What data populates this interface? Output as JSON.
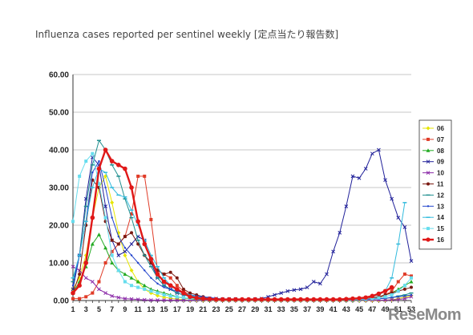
{
  "title": "Influenza cases reported per sentinel weekly [定点当たり報告数]",
  "watermark": "ReseMom",
  "chart_data": {
    "type": "line",
    "title": "Influenza cases reported per sentinel weekly [定点当たり報告数]",
    "ylim": [
      0,
      60
    ],
    "yticks": [
      0,
      10,
      20,
      30,
      40,
      50,
      60
    ],
    "ytick_labels": [
      "0.00",
      "10.00",
      "20.00",
      "30.00",
      "40.00",
      "50.00",
      "60.00"
    ],
    "xlim": [
      1,
      53
    ],
    "xtick_labels": [
      "1",
      "3",
      "5",
      "7",
      "9",
      "11",
      "13",
      "15",
      "17",
      "19",
      "21",
      "23",
      "25",
      "27",
      "29",
      "31",
      "33",
      "35",
      "37",
      "39",
      "41",
      "43",
      "45",
      "47",
      "49",
      "51",
      "53"
    ],
    "grid": "horizontal",
    "legend": "right",
    "series": [
      {
        "name": "06",
        "color": "#e6e600",
        "marker": "diamond",
        "values": [
          3,
          6,
          12,
          22,
          30,
          33,
          26,
          18,
          12,
          8,
          5,
          3,
          2,
          1.3,
          0.9,
          0.6,
          0.4,
          0.2,
          0.1,
          0.1,
          0.05,
          0.05,
          0.05,
          0.05,
          0.05,
          0.05,
          0.05,
          0.05,
          0.05,
          0.05,
          0.05,
          0.05,
          0.05,
          0.05,
          0.05,
          0.05,
          0.05,
          0.05,
          0.05,
          0.05,
          0.05,
          0.05,
          0.05,
          0.05,
          0.05,
          0.05,
          0.05,
          0.05,
          0.1,
          0.2,
          0.5,
          0.9,
          1.3
        ]
      },
      {
        "name": "07",
        "color": "#e03c28",
        "marker": "square",
        "values": [
          0.5,
          0.5,
          1,
          2,
          5,
          10,
          13,
          15,
          17,
          23,
          33,
          33,
          21.5,
          8,
          7,
          6,
          4,
          2.5,
          1.5,
          1,
          0.6,
          0.4,
          0.3,
          0.2,
          0.2,
          0.2,
          0.2,
          0.2,
          0.2,
          0.2,
          0.2,
          0.2,
          0.2,
          0.2,
          0.2,
          0.2,
          0.2,
          0.2,
          0.2,
          0.2,
          0.2,
          0.2,
          0.2,
          0.2,
          0.3,
          0.4,
          0.5,
          0.7,
          1.5,
          2.5,
          5,
          7,
          6.5
        ]
      },
      {
        "name": "08",
        "color": "#22aa22",
        "marker": "triangle",
        "values": [
          2,
          5,
          9,
          15,
          17.5,
          14,
          10,
          8,
          7,
          6,
          5,
          4,
          3,
          2.5,
          2,
          1.5,
          1,
          0.7,
          0.5,
          0.3,
          0.2,
          0.1,
          0.1,
          0.1,
          0.1,
          0.1,
          0.1,
          0.1,
          0.1,
          0.1,
          0.1,
          0.1,
          0.1,
          0.1,
          0.1,
          0.1,
          0.1,
          0.1,
          0.1,
          0.1,
          0.1,
          0.1,
          0.1,
          0.1,
          0.2,
          0.3,
          0.5,
          1,
          1.5,
          2,
          3,
          4,
          5
        ]
      },
      {
        "name": "09",
        "color": "#22229a",
        "marker": "x",
        "values": [
          3,
          12,
          27,
          38,
          36,
          25,
          16,
          12,
          13,
          15,
          17,
          16,
          10,
          6,
          4,
          3,
          2,
          1.5,
          1.2,
          1,
          0.8,
          0.6,
          0.5,
          0.4,
          0.4,
          0.4,
          0.3,
          0.3,
          0.4,
          0.5,
          1,
          1.5,
          2,
          2.5,
          2.8,
          3,
          3.5,
          5,
          4.5,
          7,
          13,
          18,
          25,
          33,
          32.5,
          35,
          39,
          40,
          32,
          27,
          22,
          19.5,
          10.5
        ]
      },
      {
        "name": "10",
        "color": "#8b2aa8",
        "marker": "x",
        "values": [
          9,
          8,
          6,
          5,
          3,
          2,
          1.2,
          0.8,
          0.5,
          0.4,
          0.3,
          0.2,
          0.1,
          0.1,
          0.1,
          0.1,
          0.1,
          0.1,
          0.1,
          0.1,
          0.1,
          0.1,
          0.1,
          0.1,
          0.1,
          0.1,
          0.1,
          0.1,
          0.1,
          0.1,
          0.1,
          0.1,
          0.1,
          0.1,
          0.1,
          0.1,
          0.1,
          0.1,
          0.1,
          0.1,
          0.1,
          0.1,
          0.1,
          0.1,
          0.1,
          0.1,
          0.1,
          0.1,
          0.1,
          0.2,
          0.3,
          0.5,
          1
        ]
      },
      {
        "name": "11",
        "color": "#7a1a12",
        "marker": "circle",
        "values": [
          2,
          7,
          20,
          32,
          30,
          21,
          16,
          15,
          17,
          18,
          15,
          12,
          10,
          8,
          7,
          7.5,
          6,
          3,
          2,
          1.5,
          1,
          0.6,
          0.4,
          0.3,
          0.2,
          0.2,
          0.2,
          0.2,
          0.2,
          0.2,
          0.2,
          0.2,
          0.2,
          0.2,
          0.2,
          0.2,
          0.2,
          0.2,
          0.2,
          0.2,
          0.2,
          0.2,
          0.2,
          0.3,
          0.4,
          0.5,
          0.7,
          1,
          1.5,
          2,
          2.5,
          3,
          3.5
        ]
      },
      {
        "name": "12",
        "color": "#1f8f8f",
        "marker": "dash",
        "values": [
          5,
          12,
          25,
          36,
          42.5,
          40,
          36,
          33,
          27,
          22,
          16,
          12,
          9,
          6,
          4,
          3,
          2,
          1.5,
          1,
          0.7,
          0.5,
          0.3,
          0.2,
          0.2,
          0.2,
          0.2,
          0.2,
          0.2,
          0.2,
          0.2,
          0.2,
          0.2,
          0.2,
          0.2,
          0.2,
          0.2,
          0.2,
          0.2,
          0.2,
          0.2,
          0.2,
          0.2,
          0.2,
          0.2,
          0.2,
          0.3,
          0.4,
          0.5,
          0.6,
          0.8,
          1.2,
          1.5,
          2
        ]
      },
      {
        "name": "13",
        "color": "#2244cc",
        "marker": "dot",
        "values": [
          4,
          12,
          21,
          34,
          37,
          30,
          22,
          17,
          14,
          12,
          10,
          8,
          6,
          4.5,
          3.5,
          3,
          2.5,
          2,
          1.5,
          1.2,
          1,
          0.8,
          0.6,
          0.4,
          0.3,
          0.3,
          0.3,
          0.3,
          0.3,
          0.3,
          0.3,
          0.3,
          0.3,
          0.3,
          0.3,
          0.3,
          0.3,
          0.3,
          0.3,
          0.3,
          0.3,
          0.3,
          0.3,
          0.3,
          0.3,
          0.3,
          0.4,
          0.5,
          0.6,
          0.8,
          1,
          1.2,
          1.5
        ]
      },
      {
        "name": "14",
        "color": "#33bbdd",
        "marker": "dash",
        "values": [
          6,
          12,
          21,
          30,
          35,
          34,
          30,
          28,
          27.5,
          24,
          20,
          16,
          12,
          9,
          6,
          4,
          3,
          2,
          1.5,
          1,
          0.7,
          0.5,
          0.3,
          0.3,
          0.3,
          0.3,
          0.3,
          0.3,
          0.3,
          0.3,
          0.3,
          0.3,
          0.3,
          0.3,
          0.3,
          0.3,
          0.3,
          0.3,
          0.3,
          0.3,
          0.3,
          0.3,
          0.3,
          0.3,
          0.5,
          0.8,
          1,
          1.5,
          2.5,
          6,
          15,
          26,
          null
        ]
      },
      {
        "name": "15",
        "color": "#66ddee",
        "marker": "square",
        "values": [
          21,
          33,
          37,
          39,
          31,
          22,
          12,
          8,
          5,
          4,
          3.5,
          3,
          2.5,
          2,
          1.5,
          1.2,
          1,
          0.8,
          0.6,
          0.5,
          0.4,
          0.3,
          0.3,
          0.3,
          0.3,
          0.3,
          0.3,
          0.3,
          0.3,
          0.3,
          0.3,
          0.3,
          0.3,
          0.3,
          0.3,
          0.3,
          0.3,
          0.3,
          0.3,
          0.3,
          0.3,
          0.3,
          0.3,
          0.3,
          0.3,
          0.4,
          0.5,
          0.7,
          1,
          1.5,
          2.5,
          4,
          6
        ]
      },
      {
        "name": "16",
        "color": "#e01818",
        "marker": "circle",
        "bold": true,
        "values": [
          2,
          4,
          10,
          22,
          35,
          40,
          37,
          36,
          35,
          30,
          21,
          15,
          11,
          7,
          5,
          4,
          3,
          2,
          1,
          0.7,
          0.5,
          0.4,
          0.3,
          0.3,
          0.3,
          0.3,
          0.3,
          0.3,
          0.3,
          0.3,
          0.3,
          0.3,
          0.3,
          0.3,
          0.3,
          0.3,
          0.3,
          0.3,
          0.3,
          0.3,
          0.3,
          0.3,
          0.4,
          0.5,
          0.6,
          0.8,
          1.2,
          1.8,
          2.5,
          3.5,
          null,
          null,
          null
        ]
      }
    ]
  }
}
